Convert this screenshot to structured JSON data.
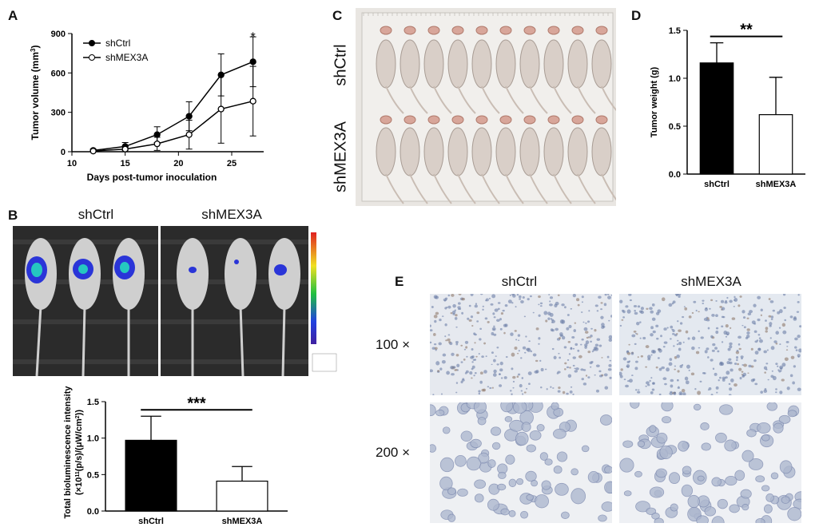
{
  "panels": {
    "a": {
      "letter": "A"
    },
    "b": {
      "letter": "B",
      "group_left": "shCtrl",
      "group_right": "shMEX3A"
    },
    "c": {
      "letter": "C",
      "row_top": "shCtrl",
      "row_bottom": "shMEX3A"
    },
    "d": {
      "letter": "D"
    },
    "e": {
      "letter": "E",
      "col_left": "shCtrl",
      "col_right": "shMEX3A",
      "row_top": "100 ×",
      "row_bottom": "200 ×"
    }
  },
  "chart_data": [
    {
      "id": "A",
      "type": "line",
      "xlabel": "Days post-tumor inoculation",
      "ylabel": "Tumor volume (mm",
      "ylabel_sup": "3",
      "ylabel_end": ")",
      "xlim": [
        10,
        28
      ],
      "ylim": [
        0,
        900
      ],
      "xticks": [
        10,
        15,
        20,
        25
      ],
      "yticks": [
        0,
        300,
        600,
        900
      ],
      "legend_position": "top-left",
      "annotation": "*",
      "series": [
        {
          "name": "shCtrl",
          "marker": "filled",
          "x": [
            12,
            15,
            18,
            21,
            24,
            27
          ],
          "y": [
            10,
            40,
            130,
            270,
            585,
            685
          ],
          "err": [
            10,
            30,
            60,
            110,
            160,
            190
          ]
        },
        {
          "name": "shMEX3A",
          "marker": "open",
          "x": [
            12,
            15,
            18,
            21,
            24,
            27
          ],
          "y": [
            5,
            20,
            60,
            130,
            325,
            385
          ],
          "err": [
            5,
            20,
            50,
            110,
            260,
            265
          ]
        }
      ]
    },
    {
      "id": "B",
      "type": "bar",
      "categories": [
        "shCtrl",
        "shMEX3A"
      ],
      "values": [
        0.97,
        0.41
      ],
      "errors": [
        0.33,
        0.2
      ],
      "ylabel_line1": "Total bioluminescence intensity",
      "ylabel_line2": "(×10",
      "ylabel_sup": "11",
      "ylabel_line2_end": "(p/s)/(μW/cm",
      "ylabel_sup2": "2",
      "ylabel_close": "))",
      "ylim": [
        0,
        1.5
      ],
      "yticks": [
        "0.0",
        "0.5",
        "1.0",
        "1.5"
      ],
      "significance": "***",
      "bar_fills": [
        "#000000",
        "#ffffff"
      ]
    },
    {
      "id": "D",
      "type": "bar",
      "categories": [
        "shCtrl",
        "shMEX3A"
      ],
      "values": [
        1.16,
        0.62
      ],
      "errors": [
        0.21,
        0.39
      ],
      "ylabel": "Tumor weight (g)",
      "ylim": [
        0,
        1.5
      ],
      "yticks": [
        "0.0",
        "0.5",
        "1.0",
        "1.5"
      ],
      "significance": "**",
      "bar_fills": [
        "#000000",
        "#ffffff"
      ]
    }
  ]
}
